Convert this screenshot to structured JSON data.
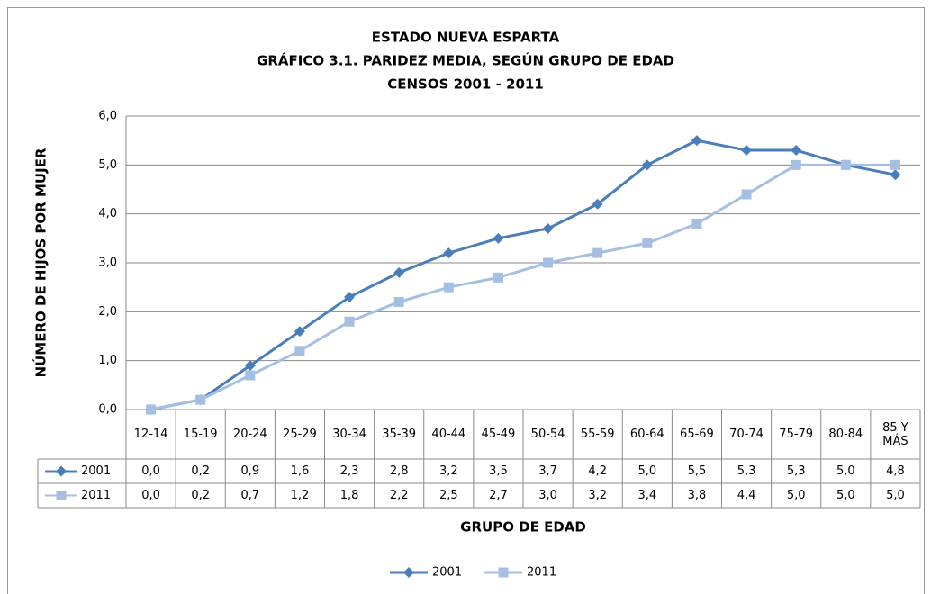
{
  "chart_data": {
    "type": "line",
    "title": [
      "ESTADO NUEVA ESPARTA",
      "GRÁFICO 3.1. PARIDEZ MEDIA, SEGÚN GRUPO DE EDAD",
      "CENSOS 2001 - 2011"
    ],
    "xlabel": "GRUPO DE EDAD",
    "ylabel": "NÚMERO DE HIJOS POR MUJER",
    "categories": [
      "12-14",
      "15-19",
      "20-24",
      "25-29",
      "30-34",
      "35-39",
      "40-44",
      "45-49",
      "50-54",
      "55-59",
      "60-64",
      "65-69",
      "70-74",
      "75-79",
      "80-84",
      "85 Y MÁS"
    ],
    "series": [
      {
        "name": "2001",
        "color": "#4a7ebb",
        "marker": "diamond",
        "values": [
          0.0,
          0.2,
          0.9,
          1.6,
          2.3,
          2.8,
          3.2,
          3.5,
          3.7,
          4.2,
          5.0,
          5.5,
          5.3,
          5.3,
          5.0,
          4.8
        ],
        "value_labels": [
          "0,0",
          "0,2",
          "0,9",
          "1,6",
          "2,3",
          "2,8",
          "3,2",
          "3,5",
          "3,7",
          "4,2",
          "5,0",
          "5,5",
          "5,3",
          "5,3",
          "5,0",
          "4,8"
        ]
      },
      {
        "name": "2011",
        "color": "#a5bfe3",
        "marker": "square",
        "values": [
          0.0,
          0.2,
          0.7,
          1.2,
          1.8,
          2.2,
          2.5,
          2.7,
          3.0,
          3.2,
          3.4,
          3.8,
          4.4,
          5.0,
          5.0,
          5.0
        ],
        "value_labels": [
          "0,0",
          "0,2",
          "0,7",
          "1,2",
          "1,8",
          "2,2",
          "2,5",
          "2,7",
          "3,0",
          "3,2",
          "3,4",
          "3,8",
          "4,4",
          "5,0",
          "5,0",
          "5,0"
        ]
      }
    ],
    "ylim": [
      0,
      6
    ],
    "yticks": [
      {
        "value": 0,
        "label": "0,0"
      },
      {
        "value": 1,
        "label": "1,0"
      },
      {
        "value": 2,
        "label": "2,0"
      },
      {
        "value": 3,
        "label": "3,0"
      },
      {
        "value": 4,
        "label": "4,0"
      },
      {
        "value": 5,
        "label": "5,0"
      },
      {
        "value": 6,
        "label": "6,0"
      }
    ],
    "grid": true,
    "data_table": true,
    "legend": "bottom"
  }
}
